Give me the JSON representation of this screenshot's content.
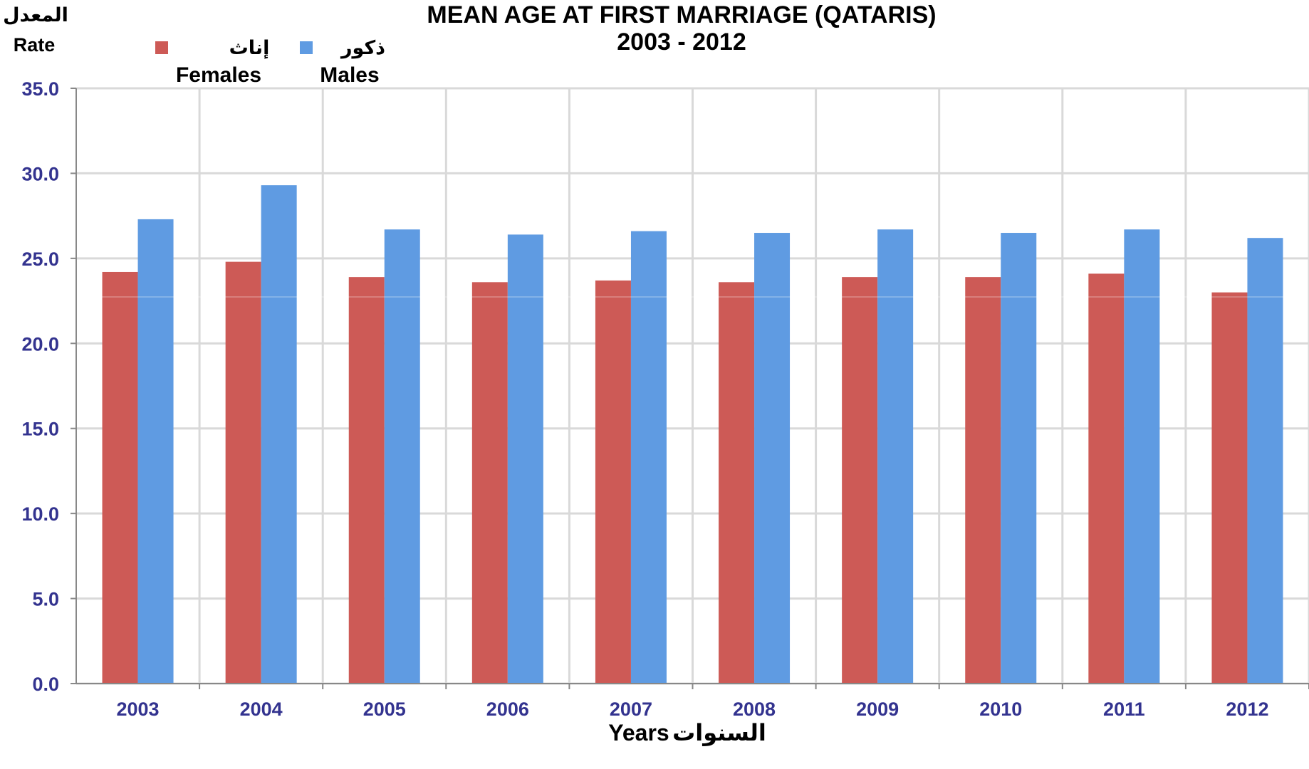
{
  "chart_data": {
    "type": "bar",
    "title": "MEAN AGE AT FIRST MARRIAGE (QATARIS)",
    "subtitle": "2003 - 2012",
    "ylabel_ar": "المعدل",
    "ylabel": "Rate",
    "xlabel": "Years",
    "xlabel_ar": "السنوات",
    "ylim": [
      0,
      35
    ],
    "yticks": [
      "0.0",
      "5.0",
      "10.0",
      "15.0",
      "20.0",
      "25.0",
      "30.0",
      "35.0"
    ],
    "grid": true,
    "legend_position": "top-left",
    "categories": [
      "2003",
      "2004",
      "2005",
      "2006",
      "2007",
      "2008",
      "2009",
      "2010",
      "2011",
      "2012"
    ],
    "series": [
      {
        "name": "Females",
        "name_ar": "إناث",
        "color": "#cd5a56",
        "values": [
          24.2,
          24.8,
          23.9,
          23.6,
          23.7,
          23.6,
          23.9,
          23.9,
          24.1,
          23.0
        ]
      },
      {
        "name": "Males",
        "name_ar": "ذكور",
        "color": "#5f9be2",
        "values": [
          27.3,
          29.3,
          26.7,
          26.4,
          26.6,
          26.5,
          26.7,
          26.5,
          26.7,
          26.2
        ]
      }
    ]
  }
}
